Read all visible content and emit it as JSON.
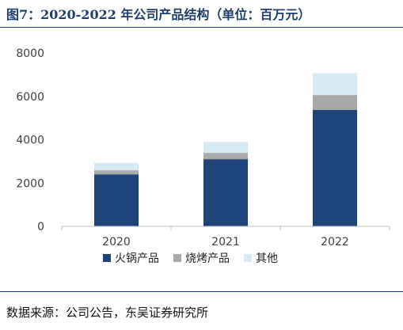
{
  "title": "图7：2020-2022 年公司产品结构（单位：百万元）",
  "source": "数据来源：公司公告，东吴证券研究所",
  "colors": {
    "hotpot": "#1f4479",
    "bbq": "#a9a9a9",
    "other": "#d6eaf5"
  },
  "chart_data": {
    "type": "bar",
    "stacked": true,
    "categories": [
      "2020",
      "2021",
      "2022"
    ],
    "series": [
      {
        "name": "火锅产品",
        "values": [
          2400,
          3100,
          5380
        ]
      },
      {
        "name": "烧烤产品",
        "values": [
          190,
          290,
          680
        ]
      },
      {
        "name": "其他",
        "values": [
          340,
          500,
          1010
        ]
      }
    ],
    "ylim": [
      0,
      8000
    ],
    "yticks": [
      "0",
      "2000",
      "4000",
      "6000",
      "8000"
    ],
    "grid": false,
    "legend_position": "bottom"
  }
}
